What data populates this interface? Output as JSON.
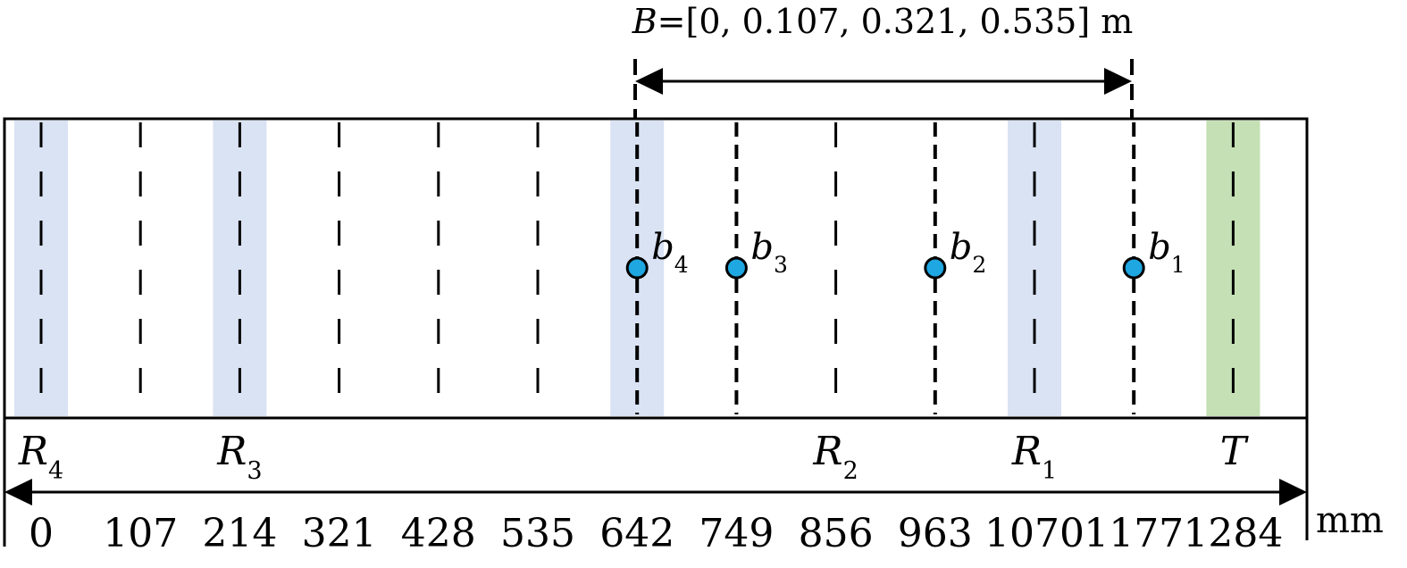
{
  "top_label": {
    "var": "B",
    "rest": "=[0, 0.107, 0.321, 0.535] m"
  },
  "ticks": [
    "0",
    "107",
    "214",
    "321",
    "428",
    "535",
    "642",
    "749",
    "856",
    "963",
    "1070",
    "1177",
    "1284"
  ],
  "unit": "mm",
  "bands": [
    {
      "tick": 0,
      "color": "#dae3f3",
      "label": "R",
      "sub": "4"
    },
    {
      "tick": 2,
      "color": "#dae3f3",
      "label": "R",
      "sub": "3"
    },
    {
      "tick": 6,
      "color": "#dae3f3",
      "label": "",
      "sub": ""
    },
    {
      "tick": 10,
      "color": "#dae3f3",
      "label": "R",
      "sub": "1"
    },
    {
      "tick": 12,
      "color": "#c5e0b4",
      "label": "T",
      "sub": ""
    }
  ],
  "extra_labels": [
    {
      "tick": 8,
      "label": "R",
      "sub": "2"
    }
  ],
  "points": [
    {
      "tick": 6,
      "label": "b",
      "sub": "4"
    },
    {
      "tick": 7,
      "label": "b",
      "sub": "3"
    },
    {
      "tick": 9,
      "label": "b",
      "sub": "2"
    },
    {
      "tick": 11,
      "label": "b",
      "sub": "1"
    }
  ],
  "colors": {
    "point_fill": "#1ea7e1",
    "line": "#000000"
  }
}
